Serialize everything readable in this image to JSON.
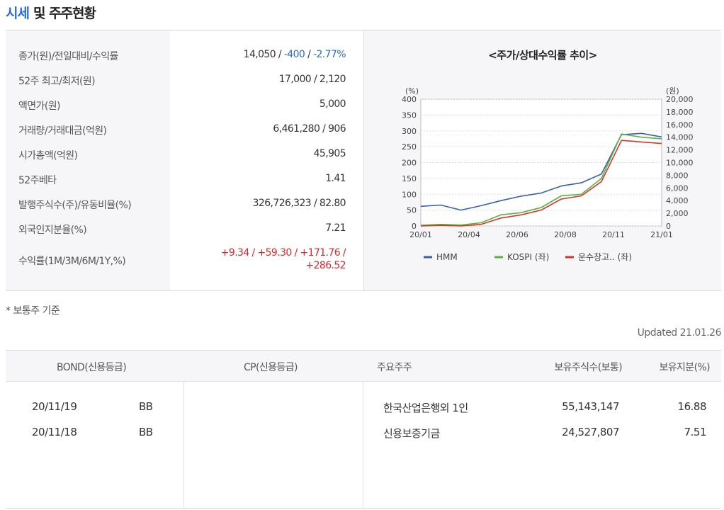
{
  "section": {
    "title_accent": "시세",
    "title_rest": "및 주주현황"
  },
  "stats": [
    {
      "label": "종가(원)/전일대비/수익률",
      "parts": [
        {
          "text": "14,050",
          "color": "default"
        },
        {
          "text": " / ",
          "color": "default"
        },
        {
          "text": "-400",
          "color": "blue"
        },
        {
          "text": " / ",
          "color": "default"
        },
        {
          "text": "-2.77%",
          "color": "blue"
        }
      ]
    },
    {
      "label": "52주 최고/최저(원)",
      "value": "17,000 / 2,120"
    },
    {
      "label": "액면가(원)",
      "value": "5,000"
    },
    {
      "label": "거래량/거래대금(억원)",
      "value": "6,461,280 / 906"
    },
    {
      "label": "시가총액(억원)",
      "value": "45,905"
    },
    {
      "label": "52주베타",
      "value": "1.41"
    },
    {
      "label": "발행주식수(주)/유동비율(%)",
      "value": "326,726,323 / 82.80"
    },
    {
      "label": "외국인지분율(%)",
      "value": "7.21"
    },
    {
      "label": "수익률(1M/3M/6M/1Y,%)",
      "line1": "+9.34 / +59.30 / +171.76 /",
      "line2": "+286.52"
    }
  ],
  "chart": {
    "title": "<주가/상대수익률 추이>",
    "left_unit": "(%)",
    "right_unit": "(원)",
    "legend": [
      {
        "name": "HMM",
        "color": "#3461b0"
      },
      {
        "name": "KOSPI (좌)",
        "color": "#5ab43c"
      },
      {
        "name": "운수창고.. (좌)",
        "color": "#d9342b"
      }
    ]
  },
  "chart_data": {
    "type": "line",
    "title": "<주가/상대수익률 추이>",
    "x_ticks": [
      "20/01",
      "20/04",
      "20/06",
      "20/08",
      "20/11",
      "21/01"
    ],
    "y_left": {
      "label": "(%)",
      "ylim": [
        0,
        400
      ],
      "ticks": [
        0,
        50,
        100,
        150,
        200,
        250,
        300,
        350,
        400
      ]
    },
    "y_right": {
      "label": "(원)",
      "ylim": [
        0,
        20000
      ],
      "ticks": [
        "0",
        "2,000",
        "4,000",
        "6,000",
        "8,000",
        "10,000",
        "12,000",
        "14,000",
        "16,000",
        "18,000",
        "20,000"
      ]
    },
    "grid": true,
    "legend_position": "bottom",
    "series": [
      {
        "name": "HMM",
        "axis": "right",
        "x": [
          "20/01",
          "20/02",
          "20/03",
          "20/04",
          "20/05",
          "20/06",
          "20/07",
          "20/08",
          "20/09",
          "20/10",
          "20/11",
          "20/12",
          "21/01"
        ],
        "values": [
          3100,
          3300,
          2500,
          3200,
          4000,
          4700,
          5200,
          6300,
          6800,
          8200,
          14400,
          14600,
          14050
        ]
      },
      {
        "name": "KOSPI (좌)",
        "axis": "left",
        "x": [
          "20/01",
          "20/02",
          "20/03",
          "20/04",
          "20/05",
          "20/06",
          "20/07",
          "20/08",
          "20/09",
          "20/10",
          "20/11",
          "20/12",
          "21/01"
        ],
        "values": [
          2,
          5,
          3,
          10,
          35,
          42,
          58,
          95,
          100,
          150,
          290,
          280,
          275
        ]
      },
      {
        "name": "운수창고.. (좌)",
        "axis": "left",
        "x": [
          "20/01",
          "20/02",
          "20/03",
          "20/04",
          "20/05",
          "20/06",
          "20/07",
          "20/08",
          "20/09",
          "20/10",
          "20/11",
          "20/12",
          "21/01"
        ],
        "values": [
          0,
          2,
          0,
          5,
          25,
          35,
          50,
          85,
          95,
          140,
          270,
          265,
          260
        ]
      }
    ]
  },
  "note": "* 보통주 기준",
  "updated": "Updated 21.01.26",
  "bonds": {
    "header_bond": "BOND(신용등급)",
    "header_cp": "CP(신용등급)",
    "rows": [
      {
        "date": "20/11/19",
        "grade": "BB"
      },
      {
        "date": "20/11/18",
        "grade": "BB"
      }
    ]
  },
  "holders": {
    "header_name": "주요주주",
    "header_shares": "보유주식수(보통)",
    "header_pct": "보유지분(%)",
    "rows": [
      {
        "name": "한국산업은행외 1인",
        "shares": "55,143,147",
        "pct": "16.88"
      },
      {
        "name": "신용보증기금",
        "shares": "24,527,807",
        "pct": "7.51"
      }
    ]
  }
}
